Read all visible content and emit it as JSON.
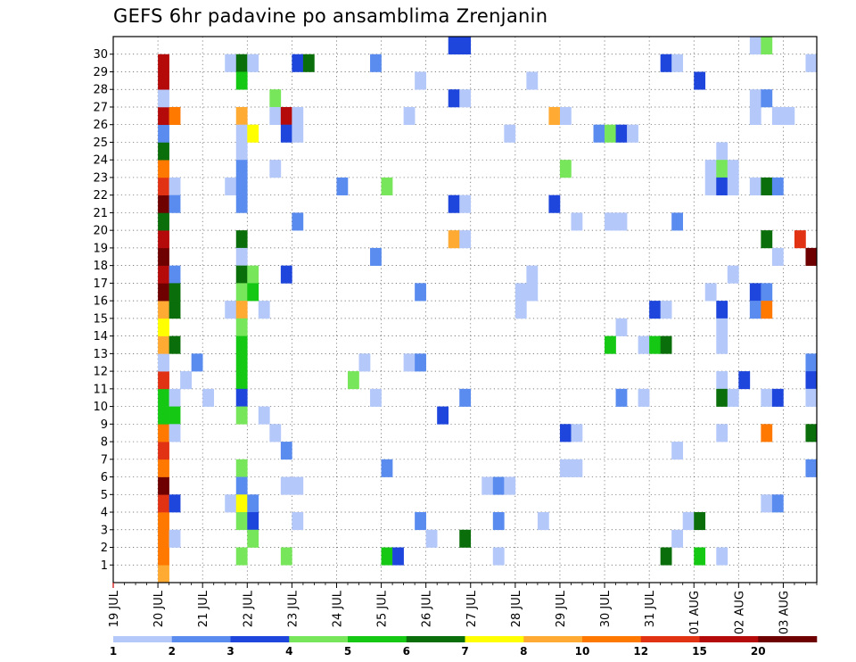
{
  "chart_data": {
    "type": "heatmap",
    "title": "GEFS 6hr padavine po ansamblima Zrenjanin",
    "y_ticks": [
      "1",
      "2",
      "3",
      "4",
      "5",
      "6",
      "7",
      "8",
      "9",
      "10",
      "11",
      "12",
      "13",
      "14",
      "15",
      "16",
      "17",
      "18",
      "19",
      "20",
      "21",
      "22",
      "23",
      "24",
      "25",
      "26",
      "27",
      "28",
      "29",
      "30"
    ],
    "x_ticks": [
      "19 JUL",
      "20 JUL",
      "21 JUL",
      "22 JUL",
      "23 JUL",
      "24 JUL",
      "25 JUL",
      "26 JUL",
      "27 JUL",
      "28 JUL",
      "29 JUL",
      "30 JUL",
      "31 JUL",
      "01 AUG",
      "02 AUG",
      "03 AUG"
    ],
    "x_unit": "6-hour step from 19 JUL 00Z",
    "y_unit": "ensemble member",
    "grid": true,
    "legend": "bottom",
    "scale": {
      "labels": [
        "1",
        "2",
        "3",
        "4",
        "5",
        "6",
        "7",
        "8",
        "10",
        "12",
        "15",
        "20"
      ],
      "colors": [
        "#b4c8fa",
        "#5a8cf0",
        "#1e46dc",
        "#78e65a",
        "#14c814",
        "#0a6e0a",
        "#ffff00",
        "#ffaa32",
        "#ff7800",
        "#e13214",
        "#b40a0a",
        "#6e0000"
      ]
    },
    "color_by_value": {
      "1": "#b4c8fa",
      "2": "#5a8cf0",
      "3": "#1e46dc",
      "4": "#78e65a",
      "5": "#14c814",
      "6": "#0a6e0a",
      "7": "#ffff00",
      "8": "#ffaa32",
      "10": "#ff7800",
      "12": "#e13214",
      "15": "#b40a0a",
      "20": "#6e0000"
    },
    "cells": [
      [
        4,
        0,
        8
      ],
      [
        4,
        1,
        10
      ],
      [
        4,
        2,
        10
      ],
      [
        4,
        3,
        10
      ],
      [
        4,
        4,
        12
      ],
      [
        4,
        5,
        20
      ],
      [
        4,
        6,
        10
      ],
      [
        4,
        7,
        12
      ],
      [
        4,
        8,
        10
      ],
      [
        4,
        9,
        5
      ],
      [
        4,
        10,
        5
      ],
      [
        4,
        11,
        12
      ],
      [
        4,
        12,
        1
      ],
      [
        4,
        13,
        8
      ],
      [
        4,
        14,
        7
      ],
      [
        4,
        15,
        8
      ],
      [
        4,
        16,
        20
      ],
      [
        4,
        17,
        15
      ],
      [
        4,
        18,
        20
      ],
      [
        4,
        19,
        15
      ],
      [
        4,
        20,
        6
      ],
      [
        4,
        21,
        20
      ],
      [
        4,
        22,
        12
      ],
      [
        4,
        23,
        10
      ],
      [
        4,
        24,
        6
      ],
      [
        4,
        25,
        2
      ],
      [
        4,
        26,
        15
      ],
      [
        4,
        27,
        1
      ],
      [
        4,
        28,
        15
      ],
      [
        4,
        29,
        15
      ],
      [
        5,
        26,
        10
      ],
      [
        5,
        22,
        1
      ],
      [
        5,
        21,
        2
      ],
      [
        5,
        17,
        2
      ],
      [
        5,
        16,
        6
      ],
      [
        5,
        15,
        6
      ],
      [
        5,
        13,
        6
      ],
      [
        5,
        10,
        1
      ],
      [
        5,
        9,
        5
      ],
      [
        5,
        8,
        1
      ],
      [
        5,
        4,
        3
      ],
      [
        5,
        2,
        1
      ],
      [
        6,
        11,
        1
      ],
      [
        7,
        12,
        2
      ],
      [
        8,
        10,
        1
      ],
      [
        10,
        29,
        1
      ],
      [
        10,
        22,
        1
      ],
      [
        10,
        15,
        1
      ],
      [
        10,
        4,
        1
      ],
      [
        11,
        29,
        6
      ],
      [
        11,
        28,
        5
      ],
      [
        11,
        26,
        8
      ],
      [
        11,
        25,
        1
      ],
      [
        11,
        24,
        1
      ],
      [
        11,
        23,
        2
      ],
      [
        11,
        22,
        2
      ],
      [
        11,
        21,
        2
      ],
      [
        11,
        19,
        6
      ],
      [
        11,
        18,
        1
      ],
      [
        11,
        17,
        6
      ],
      [
        11,
        16,
        4
      ],
      [
        11,
        15,
        8
      ],
      [
        11,
        14,
        4
      ],
      [
        11,
        13,
        5
      ],
      [
        11,
        12,
        5
      ],
      [
        11,
        11,
        5
      ],
      [
        11,
        10,
        3
      ],
      [
        11,
        9,
        4
      ],
      [
        11,
        6,
        4
      ],
      [
        11,
        5,
        2
      ],
      [
        11,
        4,
        7
      ],
      [
        11,
        3,
        4
      ],
      [
        11,
        1,
        4
      ],
      [
        12,
        29,
        1
      ],
      [
        12,
        25,
        7
      ],
      [
        12,
        17,
        4
      ],
      [
        12,
        16,
        5
      ],
      [
        12,
        4,
        2
      ],
      [
        12,
        3,
        3
      ],
      [
        12,
        2,
        4
      ],
      [
        13,
        15,
        1
      ],
      [
        13,
        9,
        1
      ],
      [
        14,
        27,
        4
      ],
      [
        14,
        26,
        1
      ],
      [
        14,
        23,
        1
      ],
      [
        14,
        8,
        1
      ],
      [
        15,
        26,
        15
      ],
      [
        15,
        25,
        3
      ],
      [
        15,
        7,
        2
      ],
      [
        15,
        5,
        1
      ],
      [
        15,
        1,
        4
      ],
      [
        15,
        17,
        3
      ],
      [
        16,
        29,
        3
      ],
      [
        16,
        26,
        1
      ],
      [
        16,
        25,
        1
      ],
      [
        16,
        20,
        2
      ],
      [
        16,
        5,
        1
      ],
      [
        16,
        3,
        1
      ],
      [
        17,
        29,
        6
      ],
      [
        20,
        22,
        2
      ],
      [
        21,
        11,
        4
      ],
      [
        22,
        12,
        1
      ],
      [
        23,
        29,
        2
      ],
      [
        23,
        18,
        2
      ],
      [
        23,
        10,
        1
      ],
      [
        24,
        22,
        4
      ],
      [
        24,
        6,
        2
      ],
      [
        24,
        1,
        5
      ],
      [
        25,
        1,
        3
      ],
      [
        26,
        26,
        1
      ],
      [
        26,
        12,
        1
      ],
      [
        27,
        28,
        1
      ],
      [
        27,
        16,
        2
      ],
      [
        27,
        12,
        2
      ],
      [
        27,
        3,
        2
      ],
      [
        28,
        2,
        1
      ],
      [
        29,
        9,
        3
      ],
      [
        30,
        30,
        3
      ],
      [
        30,
        27,
        3
      ],
      [
        30,
        21,
        3
      ],
      [
        30,
        19,
        8
      ],
      [
        31,
        30,
        3
      ],
      [
        31,
        27,
        1
      ],
      [
        31,
        21,
        1
      ],
      [
        31,
        19,
        1
      ],
      [
        31,
        10,
        2
      ],
      [
        31,
        2,
        6
      ],
      [
        33,
        5,
        1
      ],
      [
        34,
        5,
        2
      ],
      [
        34,
        3,
        2
      ],
      [
        34,
        1,
        1
      ],
      [
        35,
        25,
        1
      ],
      [
        35,
        5,
        1
      ],
      [
        36,
        16,
        1
      ],
      [
        36,
        15,
        1
      ],
      [
        37,
        28,
        1
      ],
      [
        37,
        17,
        1
      ],
      [
        37,
        16,
        1
      ],
      [
        38,
        3,
        1
      ],
      [
        39,
        26,
        8
      ],
      [
        39,
        21,
        3
      ],
      [
        40,
        26,
        1
      ],
      [
        40,
        23,
        4
      ],
      [
        40,
        8,
        3
      ],
      [
        40,
        6,
        1
      ],
      [
        41,
        20,
        1
      ],
      [
        41,
        8,
        1
      ],
      [
        41,
        6,
        1
      ],
      [
        43,
        25,
        2
      ],
      [
        44,
        25,
        4
      ],
      [
        44,
        20,
        1
      ],
      [
        44,
        13,
        5
      ],
      [
        45,
        25,
        3
      ],
      [
        45,
        20,
        1
      ],
      [
        45,
        14,
        1
      ],
      [
        45,
        10,
        2
      ],
      [
        46,
        25,
        1
      ],
      [
        47,
        13,
        1
      ],
      [
        47,
        10,
        1
      ],
      [
        48,
        15,
        3
      ],
      [
        48,
        13,
        5
      ],
      [
        49,
        29,
        3
      ],
      [
        49,
        15,
        1
      ],
      [
        49,
        13,
        6
      ],
      [
        49,
        1,
        6
      ],
      [
        50,
        29,
        1
      ],
      [
        50,
        20,
        2
      ],
      [
        50,
        7,
        1
      ],
      [
        50,
        2,
        1
      ],
      [
        51,
        3,
        1
      ],
      [
        52,
        28,
        3
      ],
      [
        52,
        3,
        6
      ],
      [
        52,
        1,
        5
      ],
      [
        53,
        23,
        1
      ],
      [
        53,
        22,
        1
      ],
      [
        53,
        16,
        1
      ],
      [
        54,
        24,
        1
      ],
      [
        54,
        23,
        4
      ],
      [
        54,
        22,
        3
      ],
      [
        54,
        15,
        3
      ],
      [
        54,
        14,
        1
      ],
      [
        54,
        13,
        1
      ],
      [
        54,
        11,
        1
      ],
      [
        54,
        10,
        6
      ],
      [
        54,
        8,
        1
      ],
      [
        54,
        1,
        1
      ],
      [
        55,
        23,
        1
      ],
      [
        55,
        22,
        1
      ],
      [
        55,
        17,
        1
      ],
      [
        55,
        10,
        1
      ],
      [
        56,
        11,
        3
      ],
      [
        57,
        30,
        1
      ],
      [
        57,
        27,
        1
      ],
      [
        57,
        26,
        1
      ],
      [
        57,
        22,
        1
      ],
      [
        57,
        16,
        3
      ],
      [
        57,
        15,
        2
      ],
      [
        58,
        30,
        4
      ],
      [
        58,
        27,
        2
      ],
      [
        58,
        22,
        6
      ],
      [
        58,
        19,
        6
      ],
      [
        58,
        16,
        2
      ],
      [
        58,
        15,
        10
      ],
      [
        58,
        10,
        1
      ],
      [
        58,
        8,
        10
      ],
      [
        58,
        4,
        1
      ],
      [
        59,
        26,
        1
      ],
      [
        59,
        22,
        2
      ],
      [
        59,
        18,
        1
      ],
      [
        59,
        10,
        3
      ],
      [
        59,
        4,
        2
      ],
      [
        60,
        26,
        1
      ],
      [
        61,
        19,
        12
      ],
      [
        62,
        29,
        1
      ],
      [
        62,
        18,
        20
      ],
      [
        62,
        12,
        2
      ],
      [
        62,
        11,
        3
      ],
      [
        62,
        10,
        1
      ],
      [
        62,
        8,
        6
      ],
      [
        62,
        6,
        2
      ]
    ]
  }
}
